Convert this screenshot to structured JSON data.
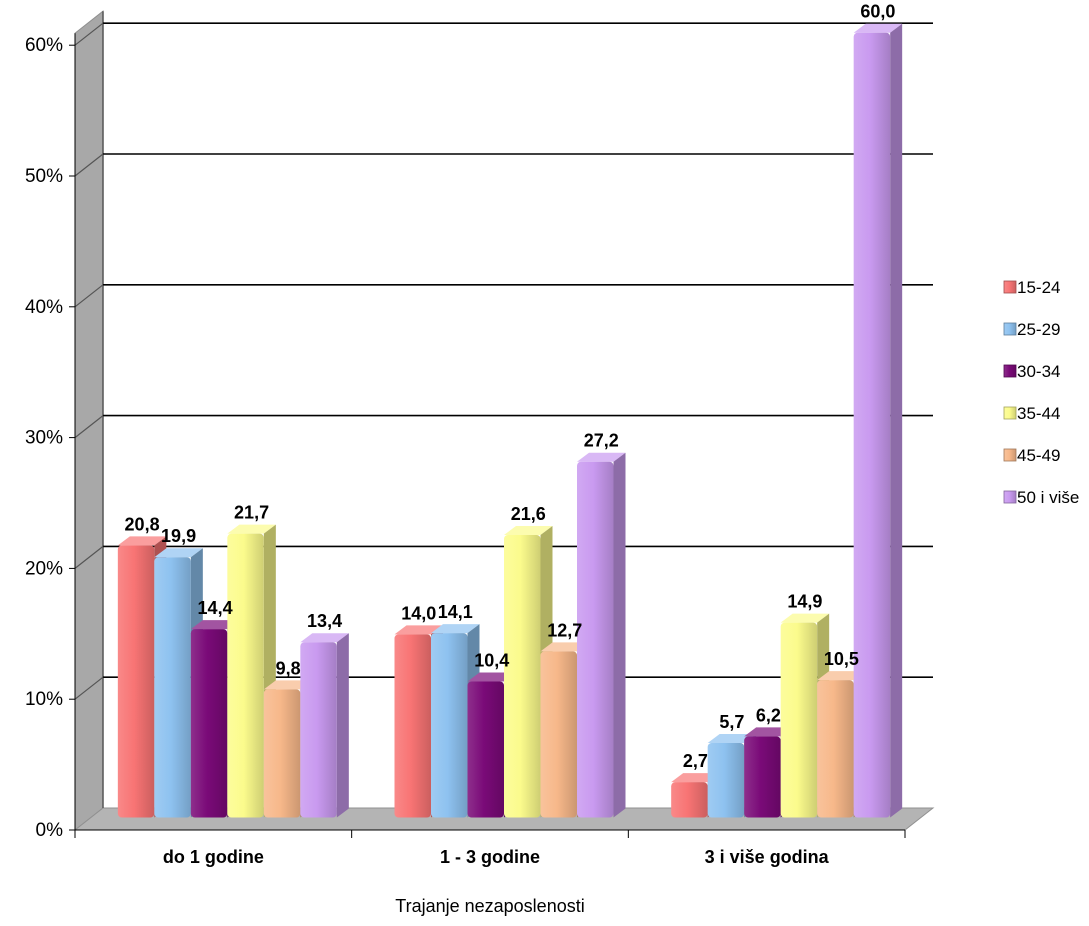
{
  "chart_data": {
    "type": "bar",
    "categories": [
      "do 1 godine",
      "1 - 3 godine",
      "3 i više godina"
    ],
    "series": [
      {
        "name": "15-24",
        "color": "#f87474",
        "values": [
          20.8,
          14.0,
          2.7
        ]
      },
      {
        "name": "25-29",
        "color": "#8ec2f0",
        "values": [
          19.9,
          14.1,
          5.7
        ]
      },
      {
        "name": "30-34",
        "color": "#7a0a78",
        "values": [
          14.4,
          10.4,
          6.2
        ]
      },
      {
        "name": "35-44",
        "color": "#fbfb8c",
        "values": [
          21.7,
          21.6,
          14.9
        ]
      },
      {
        "name": "45-49",
        "color": "#f7b88a",
        "values": [
          9.8,
          12.7,
          10.5
        ]
      },
      {
        "name": "50 i više",
        "color": "#c99af0",
        "values": [
          13.4,
          27.2,
          60.0
        ]
      }
    ],
    "data_labels": [
      [
        "20,8",
        "14,0",
        "2,7"
      ],
      [
        "19,9",
        "14,1",
        "5,7"
      ],
      [
        "14,4",
        "10,4",
        "6,2"
      ],
      [
        "21,7",
        "21,6",
        "14,9"
      ],
      [
        "9,8",
        "12,7",
        "10,5"
      ],
      [
        "13,4",
        "27,2",
        "60,0"
      ]
    ],
    "y_ticks": [
      "0%",
      "10%",
      "20%",
      "30%",
      "40%",
      "50%",
      "60%"
    ],
    "ylim": [
      0,
      60
    ],
    "xlabel": "Trajanje nezaposlenosti",
    "ylabel": "",
    "title": "",
    "grid": true,
    "legend": "right",
    "style": "3d-bar"
  }
}
